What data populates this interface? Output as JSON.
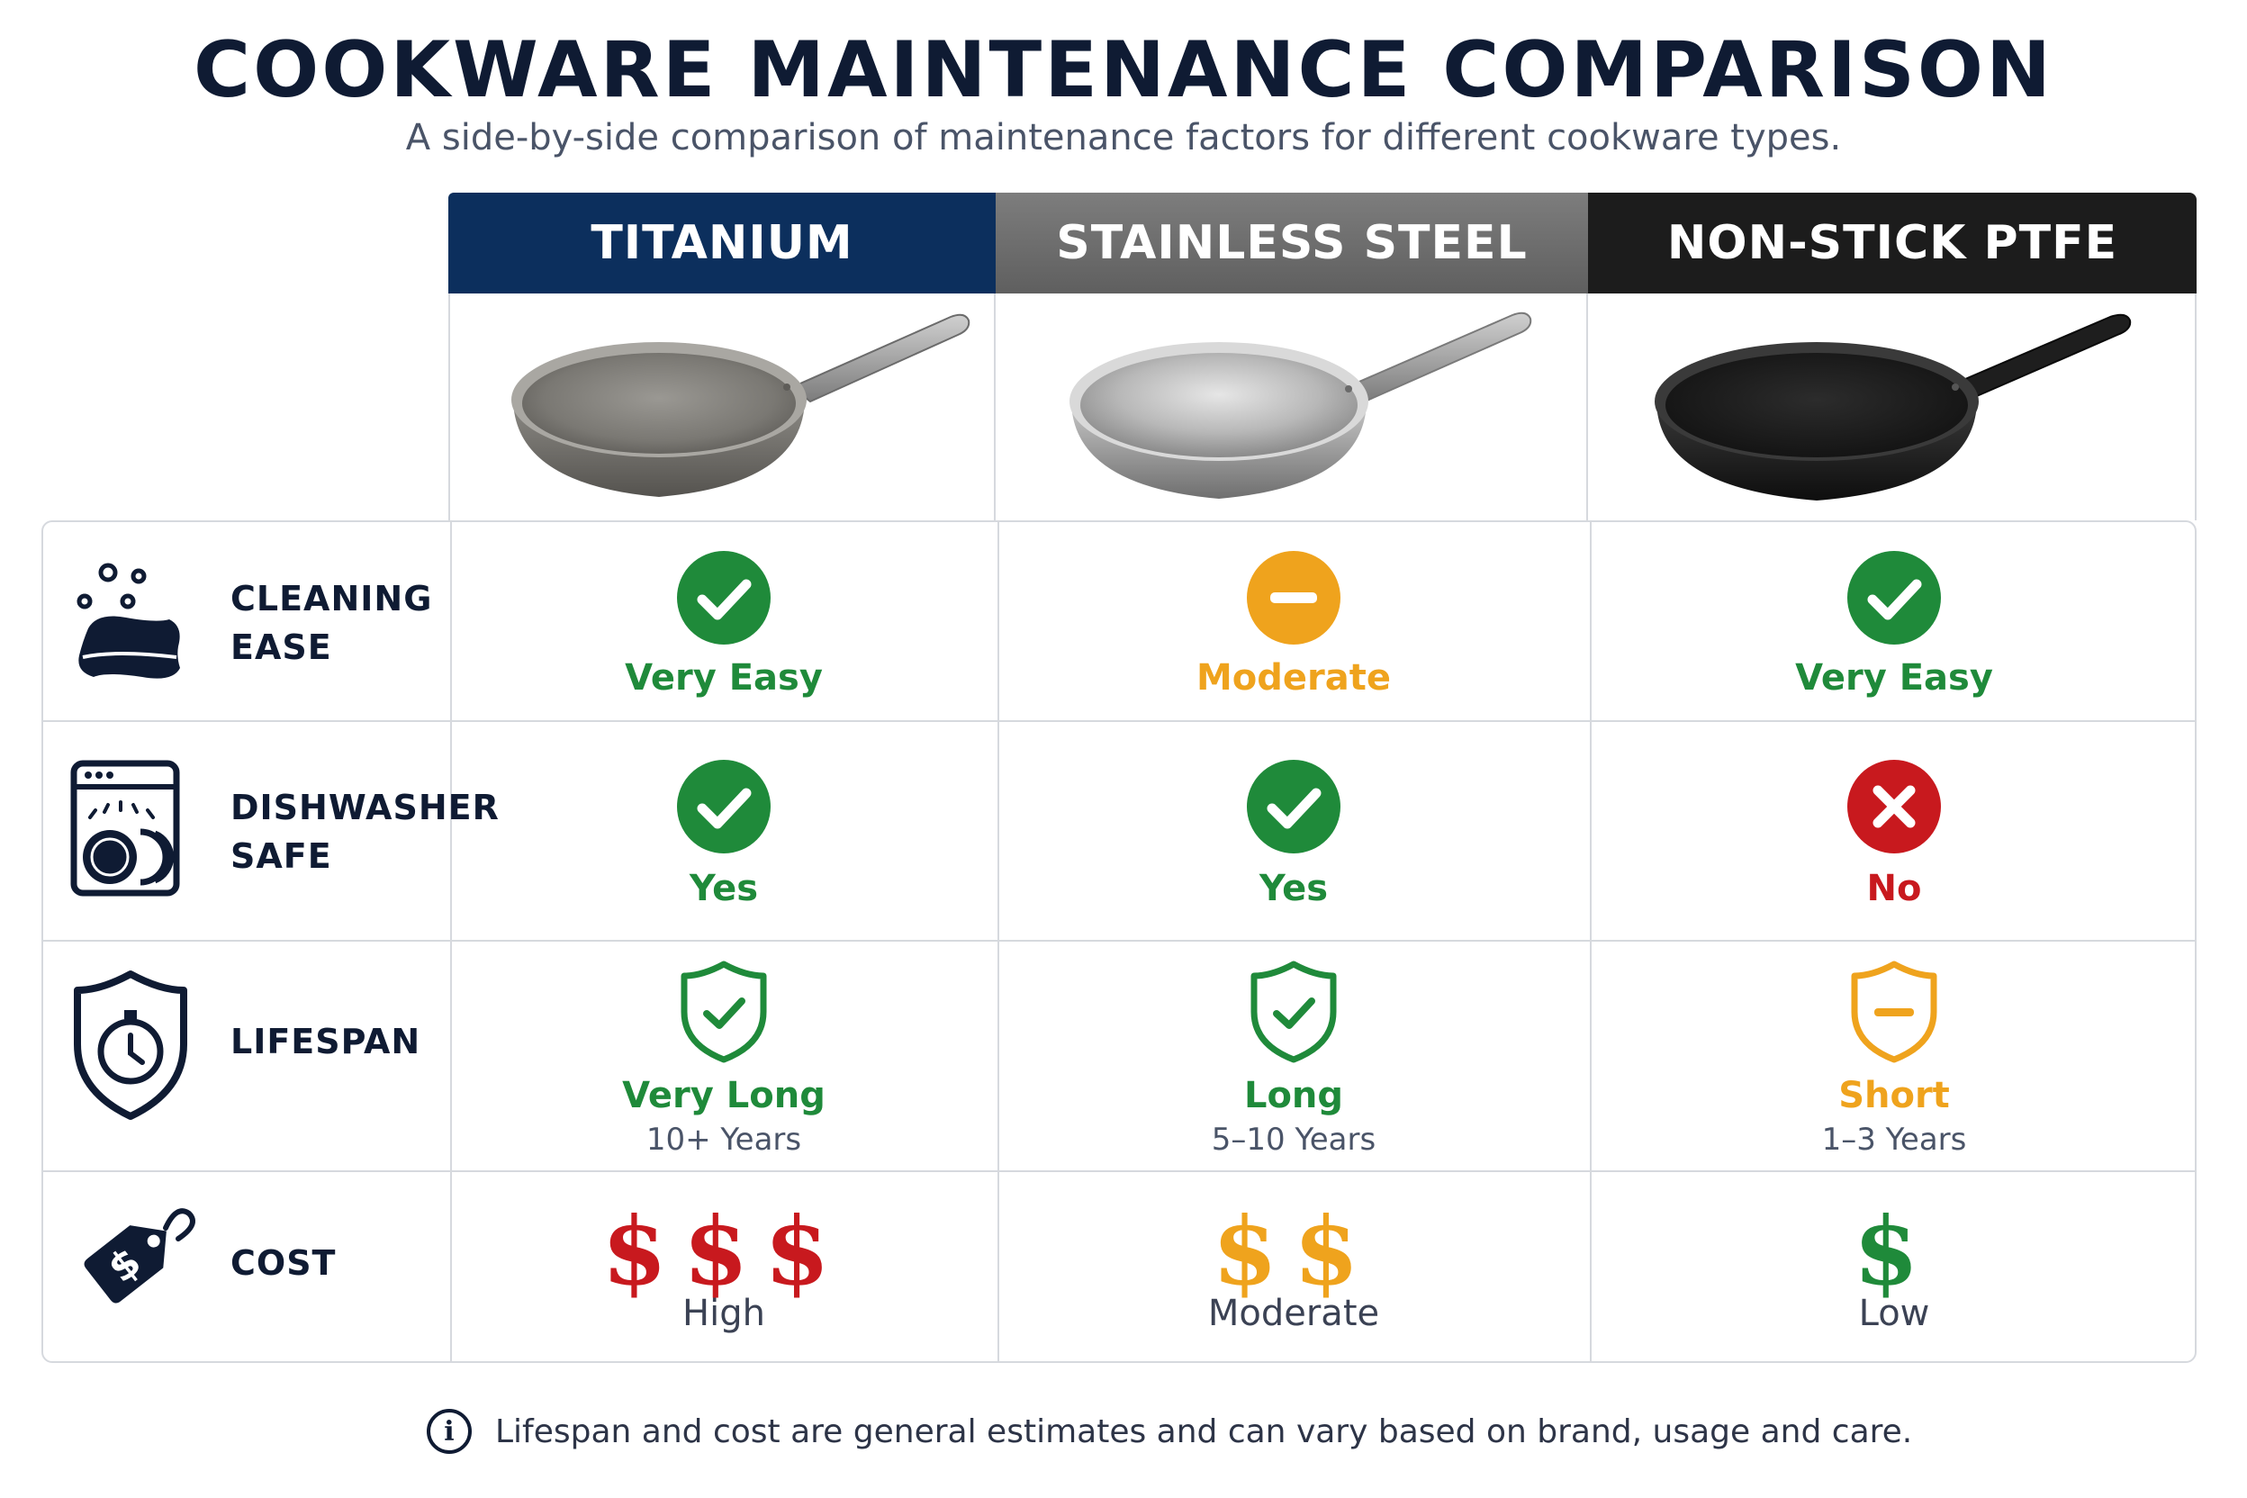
{
  "title": "COOKWARE MAINTENANCE COMPARISON",
  "subtitle": "A side-by-side comparison of maintenance factors for different cookware types.",
  "columns": [
    {
      "label": "TITANIUM",
      "color": "#0c2f5d"
    },
    {
      "label": "STAINLESS STEEL",
      "color": "#6e6e6e"
    },
    {
      "label": "NON-STICK PTFE",
      "color": "#1c1c1c"
    }
  ],
  "rows": {
    "cleaning": {
      "label": "CLEANING\nEASE",
      "icon": "sponge-icon",
      "values": [
        {
          "text": "Very Easy",
          "status": "check",
          "color": "#1f8a3a"
        },
        {
          "text": "Moderate",
          "status": "minus",
          "color": "#efa31d"
        },
        {
          "text": "Very Easy",
          "status": "check",
          "color": "#1f8a3a"
        }
      ]
    },
    "dishwasher": {
      "label": "DISHWASHER\nSAFE",
      "icon": "dishwasher-icon",
      "values": [
        {
          "text": "Yes",
          "status": "check",
          "color": "#1f8a3a"
        },
        {
          "text": "Yes",
          "status": "check",
          "color": "#1f8a3a"
        },
        {
          "text": "No",
          "status": "cross",
          "color": "#c8191e"
        }
      ]
    },
    "lifespan": {
      "label": "LIFESPAN",
      "icon": "shield-timer-icon",
      "values": [
        {
          "text": "Very Long",
          "sub": "10+ Years",
          "status": "shield-check",
          "color": "#1f8a3a"
        },
        {
          "text": "Long",
          "sub": "5–10 Years",
          "status": "shield-check",
          "color": "#1f8a3a"
        },
        {
          "text": "Short",
          "sub": "1–3 Years",
          "status": "shield-minus",
          "color": "#efa31d"
        }
      ]
    },
    "cost": {
      "label": "COST",
      "icon": "price-tag-icon",
      "values": [
        {
          "symbols": "$$$",
          "text": "High",
          "color": "#c8191e"
        },
        {
          "symbols": "$$",
          "text": "Moderate",
          "color": "#efa31d"
        },
        {
          "symbols": "$",
          "text": "Low",
          "color": "#1f8a3a"
        }
      ]
    }
  },
  "footnote": "Lifespan and cost are general estimates and can vary based on brand, usage and care.",
  "footnote_icon": "info-icon"
}
